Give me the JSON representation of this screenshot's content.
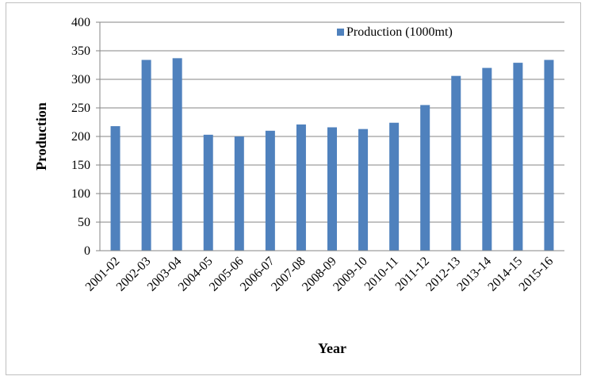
{
  "chart_data": {
    "type": "bar",
    "title": "",
    "xlabel": "Year",
    "ylabel": "Production",
    "ylim": [
      0,
      400
    ],
    "yticks": [
      0,
      50,
      100,
      150,
      200,
      250,
      300,
      350,
      400
    ],
    "grid": "horizontal",
    "legend_position": "top-right",
    "bar_color": "#4f81bd",
    "categories": [
      "2001-02",
      "2002-03",
      "2003-04",
      "2004-05",
      "2005-06",
      "2006-07",
      "2007-08",
      "2008-09",
      "2009-10",
      "2010-11",
      "2011-12",
      "2012-13",
      "2013-14",
      "2014-15",
      "2015-16"
    ],
    "series": [
      {
        "name": "Production (1000mt)",
        "values": [
          218,
          334,
          337,
          203,
          200,
          210,
          221,
          216,
          213,
          224,
          255,
          306,
          320,
          329,
          334
        ]
      }
    ]
  }
}
